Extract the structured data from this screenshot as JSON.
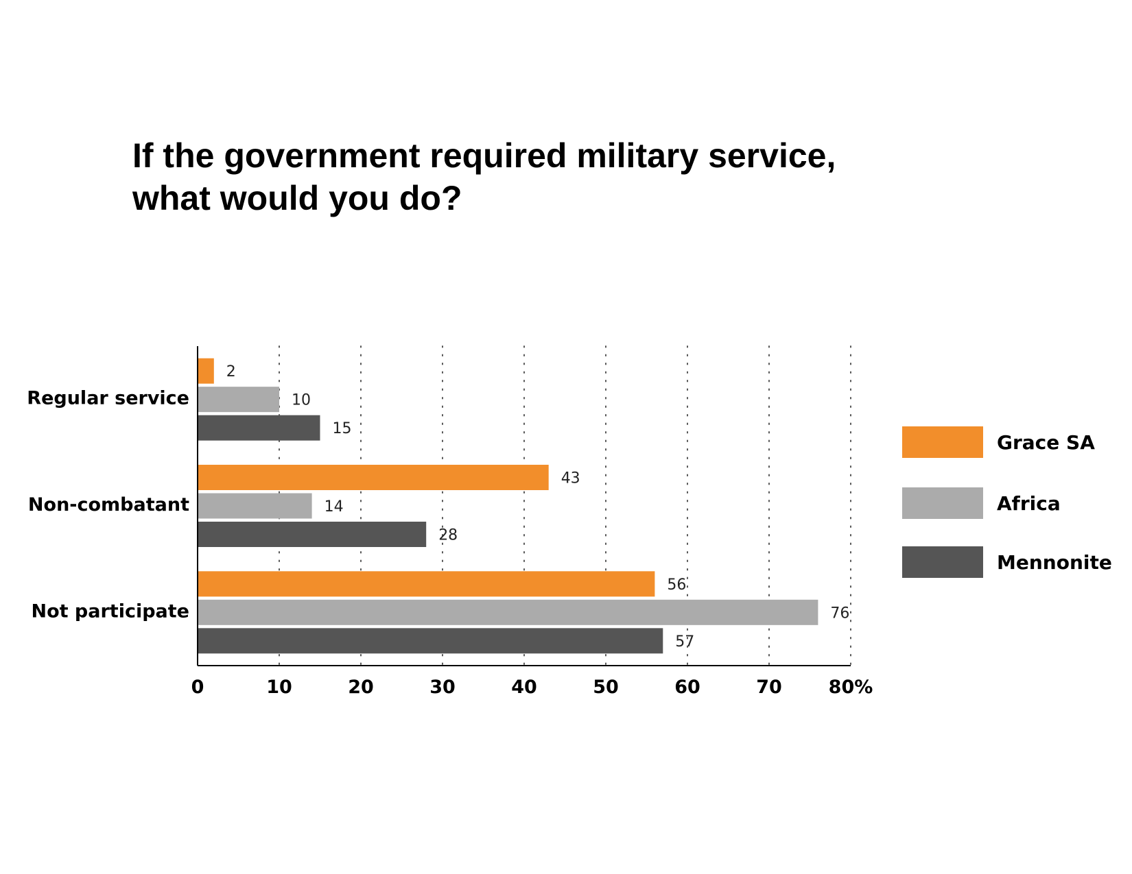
{
  "title_line1": "If the government required military service,",
  "title_line2": "what would you do?",
  "chart_data": {
    "type": "bar",
    "orientation": "horizontal",
    "title": "If the government required military service, what would you do?",
    "categories": [
      "Regular service",
      "Non-combatant",
      "Not participate"
    ],
    "series": [
      {
        "name": "Grace SA",
        "color": "#F28E2B",
        "values": [
          2,
          43,
          56
        ]
      },
      {
        "name": "Africa",
        "color": "#ABABAB",
        "values": [
          10,
          14,
          76
        ]
      },
      {
        "name": "Mennonite",
        "color": "#555555",
        "values": [
          15,
          28,
          57
        ]
      }
    ],
    "xlim": [
      0,
      80
    ],
    "xticks": [
      "0",
      "10",
      "20",
      "30",
      "40",
      "50",
      "60",
      "70",
      "80%"
    ],
    "grid": "vertical dotted",
    "legend": "right",
    "data_labels": true
  }
}
